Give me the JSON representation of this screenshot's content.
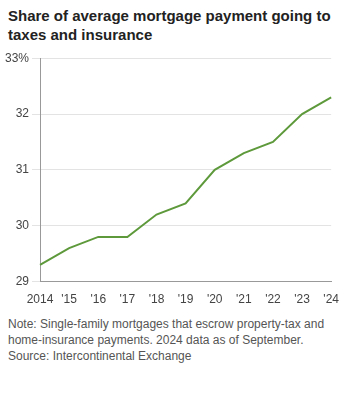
{
  "chart_data": {
    "type": "line",
    "title": "Share of average mortgage payment going to taxes and insurance",
    "note": "Note: Single-family mortgages that escrow property-tax and home-insurance payments. 2024 data as of September.",
    "source": "Source: Intercontinental Exchange",
    "categories": [
      "2014",
      "'15",
      "'16",
      "'17",
      "'18",
      "'19",
      "'20",
      "'21",
      "'22",
      "'23",
      "'24"
    ],
    "values": [
      29.3,
      29.6,
      29.8,
      29.8,
      30.2,
      30.4,
      31.0,
      31.3,
      31.5,
      32.0,
      32.3
    ],
    "color": "#5e9a3c",
    "ylim": [
      29,
      33
    ],
    "yticks": [
      29,
      30,
      31,
      32,
      {
        "value": 33,
        "label": "33%"
      }
    ],
    "grid": true
  }
}
